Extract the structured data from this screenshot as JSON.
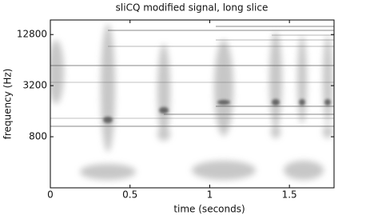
{
  "chart_data": {
    "type": "spectrogram",
    "title": "sliCQ modified signal, long slice",
    "xlabel": "time (seconds)",
    "ylabel": "frequency (Hz)",
    "xlim": [
      0,
      1.78
    ],
    "xticks": [
      0,
      0.5,
      1,
      1.5
    ],
    "ylim": [
      200,
      19000
    ],
    "yticks": [
      800,
      3200,
      12800
    ],
    "yscale": "log"
  }
}
